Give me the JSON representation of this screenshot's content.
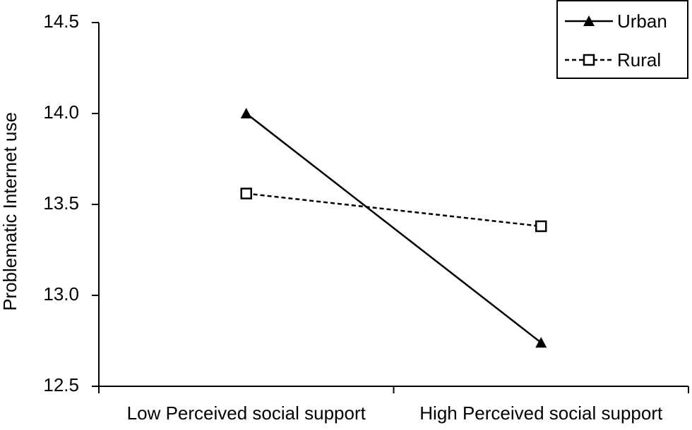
{
  "chart_data": {
    "type": "line",
    "y_label": "Problematic Internet use",
    "categories": [
      "Low Perceived social support",
      "High Perceived social support"
    ],
    "series": [
      {
        "name": "Urban",
        "color": "#000000",
        "marker": "triangle",
        "dashed": false,
        "values": [
          14.0,
          12.74
        ]
      },
      {
        "name": "Rural",
        "color": "#000000",
        "marker": "square",
        "dashed": true,
        "values": [
          13.56,
          13.38
        ]
      }
    ],
    "ylim": [
      12.5,
      14.5
    ],
    "yticks": [
      12.5,
      {
        "value": 13,
        "label": "13.0"
      },
      13.5,
      {
        "value": 14,
        "label": "14.0"
      },
      14.5
    ],
    "grid": false,
    "legend": "upper right"
  }
}
